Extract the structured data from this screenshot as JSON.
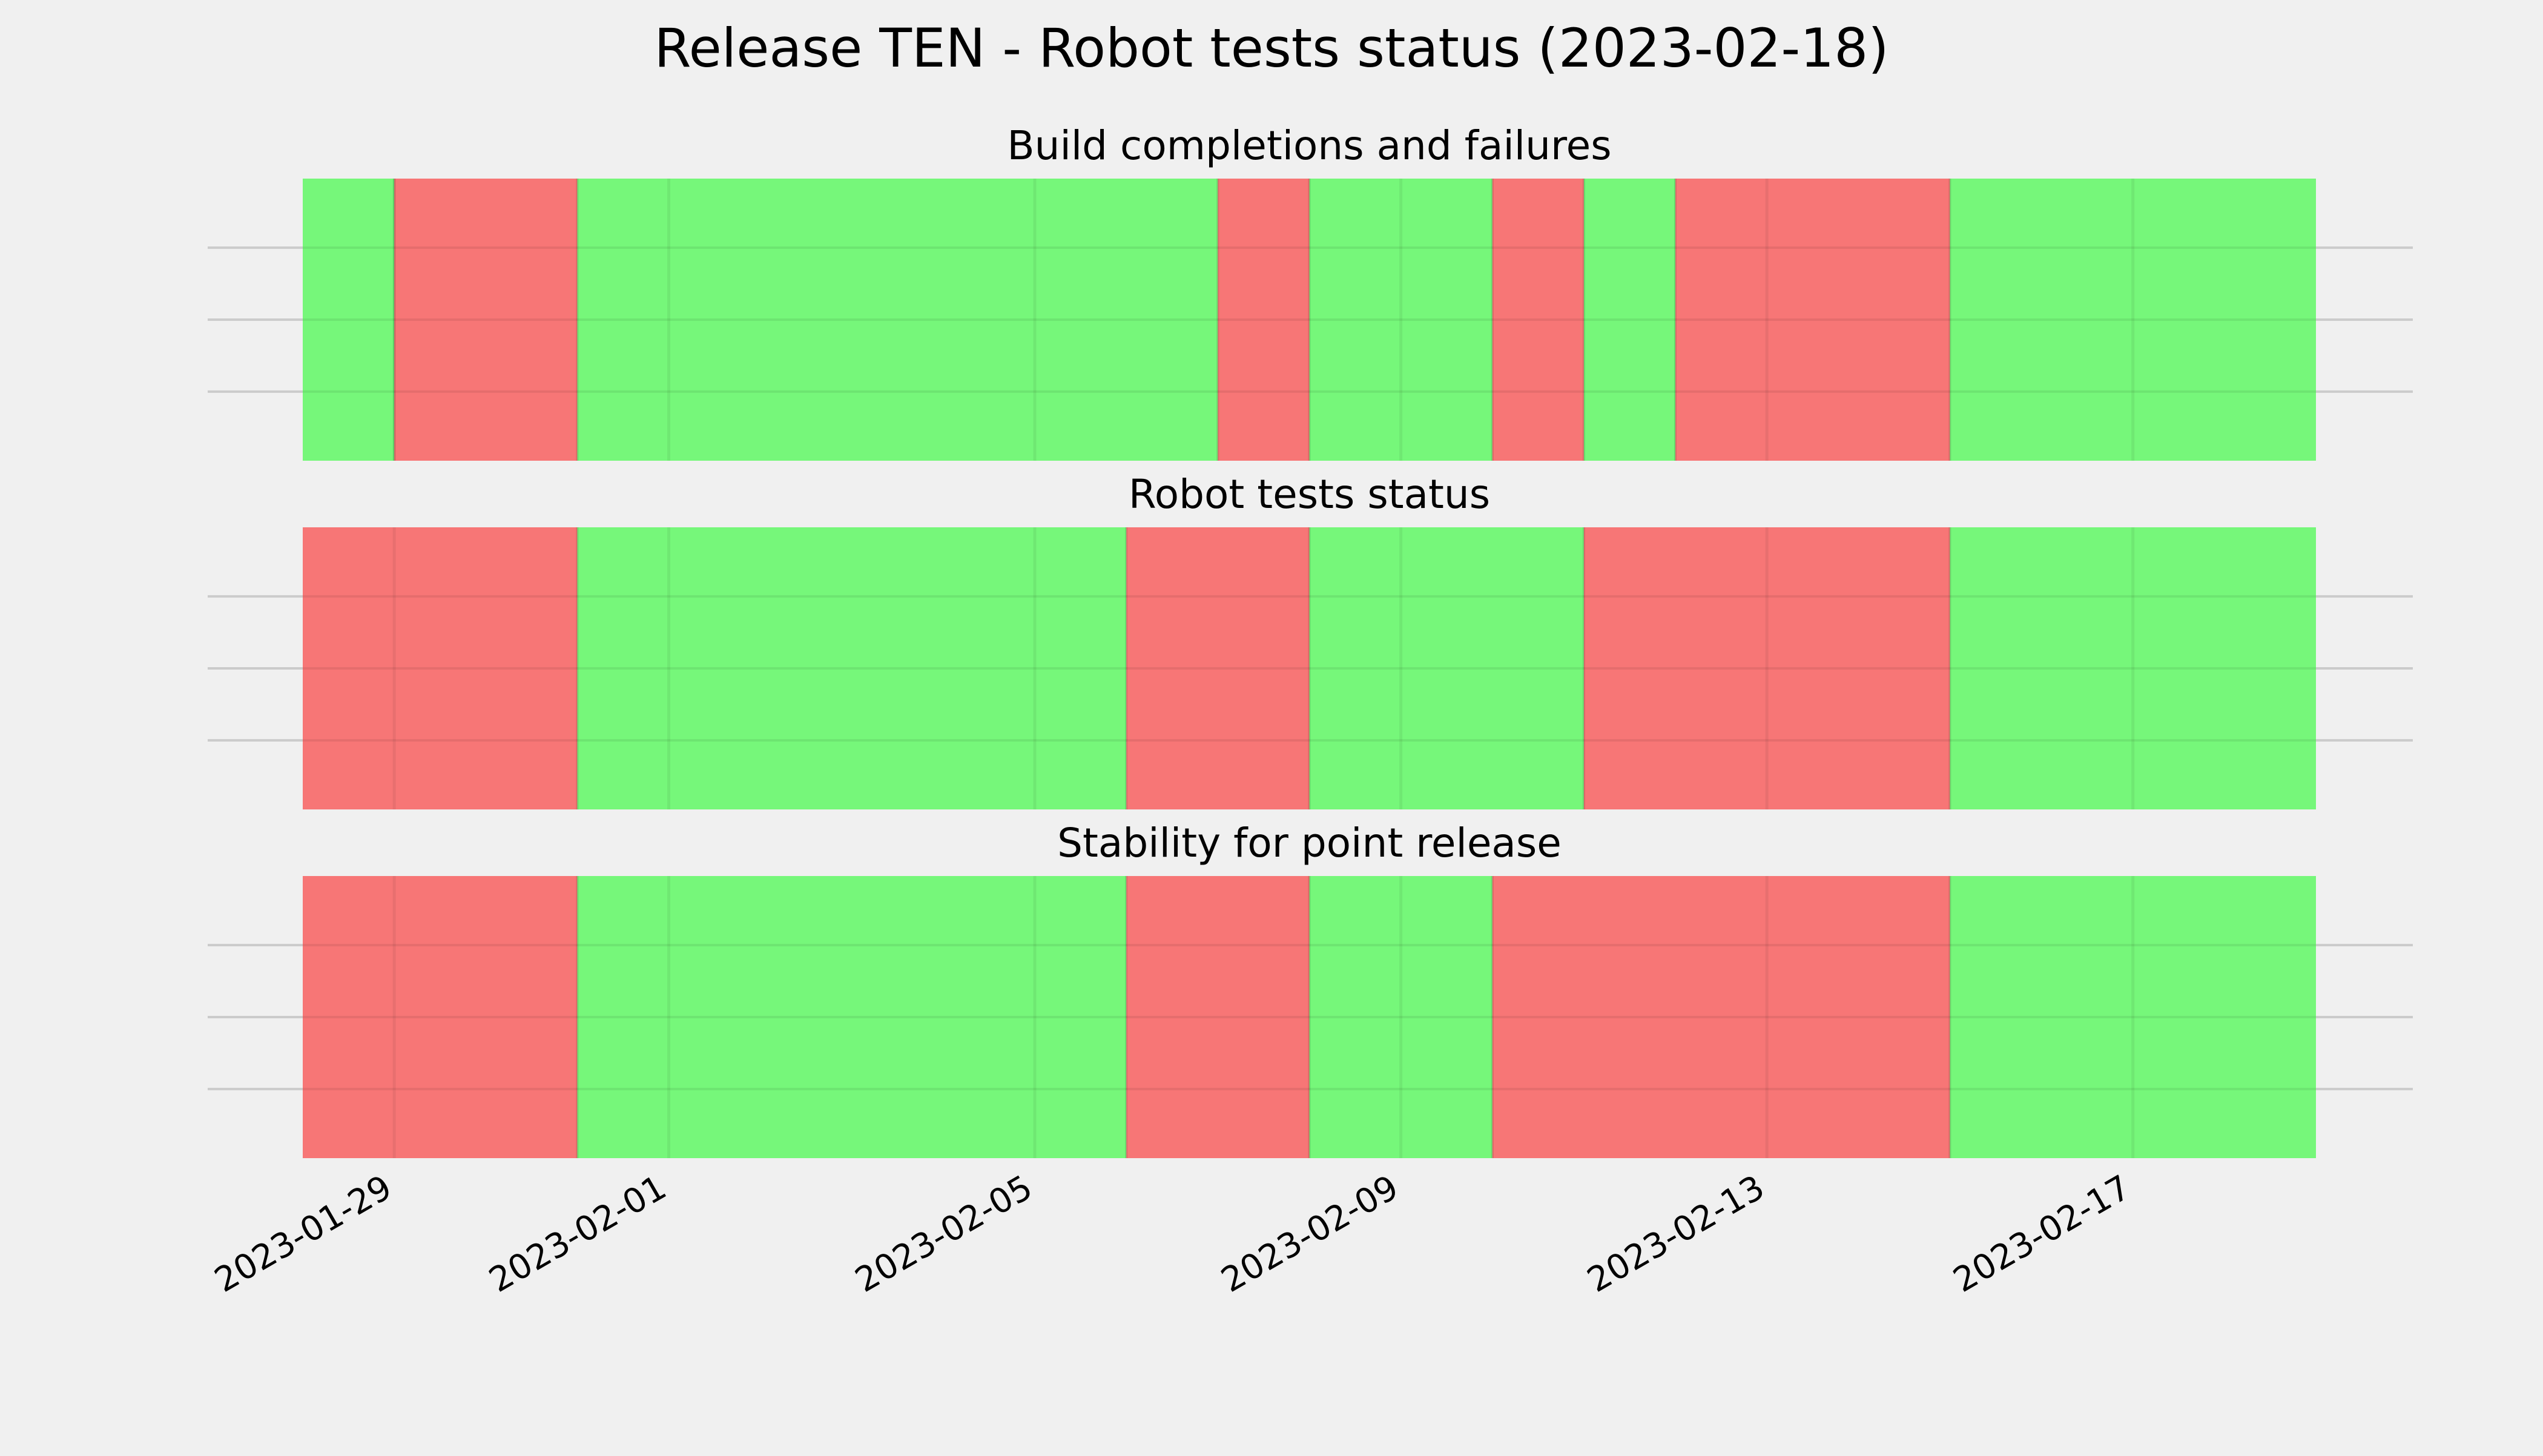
{
  "title": "Release TEN - Robot tests status (2023-02-18)",
  "colors": {
    "background": "#f0f0f0",
    "pass": "#76f77a",
    "fail": "#f77676",
    "grid": "#cbcbcb"
  },
  "chart_data": {
    "type": "timeline",
    "x_axis": {
      "type": "date",
      "range": [
        "2023-01-28",
        "2023-02-19"
      ],
      "ticks": [
        "2023-01-29",
        "2023-02-01",
        "2023-02-05",
        "2023-02-09",
        "2023-02-13",
        "2023-02-17"
      ],
      "tick_labels": [
        "2023-01-29",
        "2023-02-01",
        "2023-02-05",
        "2023-02-09",
        "2023-02-13",
        "2023-02-17"
      ]
    },
    "y_axis": {
      "tick_labels_visible": false,
      "gridlines": 3
    },
    "grid": true,
    "panels": [
      {
        "title": "Build completions and failures",
        "segments": [
          {
            "start": "2023-01-28",
            "end": "2023-01-29",
            "status": "pass"
          },
          {
            "start": "2023-01-29",
            "end": "2023-01-31",
            "status": "fail"
          },
          {
            "start": "2023-01-31",
            "end": "2023-02-07",
            "status": "pass"
          },
          {
            "start": "2023-02-07",
            "end": "2023-02-08",
            "status": "fail"
          },
          {
            "start": "2023-02-08",
            "end": "2023-02-10",
            "status": "pass"
          },
          {
            "start": "2023-02-10",
            "end": "2023-02-11",
            "status": "fail"
          },
          {
            "start": "2023-02-11",
            "end": "2023-02-12",
            "status": "pass"
          },
          {
            "start": "2023-02-12",
            "end": "2023-02-15",
            "status": "fail"
          },
          {
            "start": "2023-02-15",
            "end": "2023-02-19",
            "status": "pass"
          }
        ]
      },
      {
        "title": "Robot tests status",
        "segments": [
          {
            "start": "2023-01-28",
            "end": "2023-01-31",
            "status": "fail"
          },
          {
            "start": "2023-01-31",
            "end": "2023-02-06",
            "status": "pass"
          },
          {
            "start": "2023-02-06",
            "end": "2023-02-08",
            "status": "fail"
          },
          {
            "start": "2023-02-08",
            "end": "2023-02-11",
            "status": "pass"
          },
          {
            "start": "2023-02-11",
            "end": "2023-02-15",
            "status": "fail"
          },
          {
            "start": "2023-02-15",
            "end": "2023-02-19",
            "status": "pass"
          }
        ]
      },
      {
        "title": "Stability for point release",
        "segments": [
          {
            "start": "2023-01-28",
            "end": "2023-01-31",
            "status": "fail"
          },
          {
            "start": "2023-01-31",
            "end": "2023-02-06",
            "status": "pass"
          },
          {
            "start": "2023-02-06",
            "end": "2023-02-08",
            "status": "fail"
          },
          {
            "start": "2023-02-08",
            "end": "2023-02-10",
            "status": "pass"
          },
          {
            "start": "2023-02-10",
            "end": "2023-02-15",
            "status": "fail"
          },
          {
            "start": "2023-02-15",
            "end": "2023-02-19",
            "status": "pass"
          }
        ]
      }
    ]
  }
}
